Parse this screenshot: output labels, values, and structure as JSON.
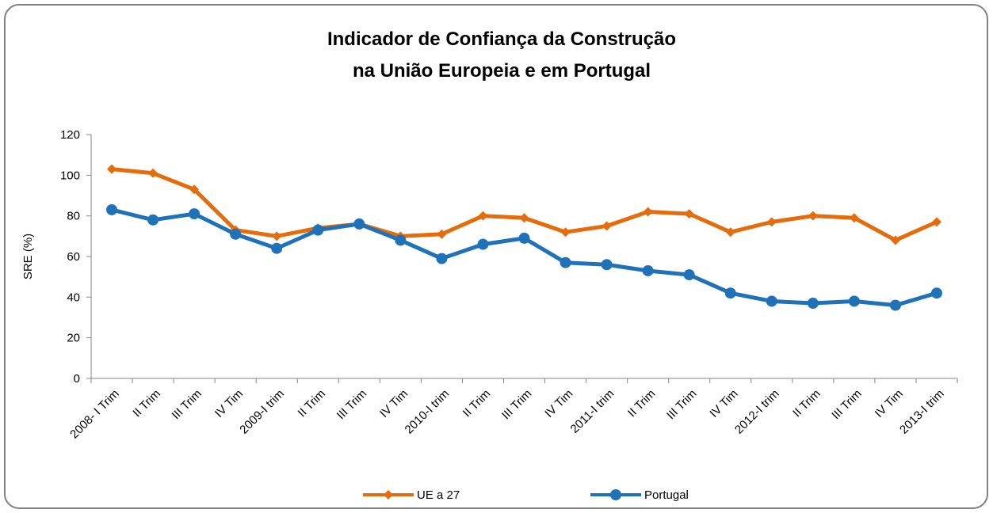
{
  "chart_data": {
    "type": "line",
    "title": [
      "Indicador de Confiança da Construção",
      "na União Europeia e em Portugal"
    ],
    "y_label": "SRE (%)",
    "categories": [
      "2008- I Trim",
      "II Trim",
      "III Trim",
      "IV Tim",
      "2009-I trim",
      "II Trim",
      "III Trim",
      "IV Tim",
      "2010-I trim",
      "II Trim",
      "III Trim",
      "IV Tim",
      "2011-I trim",
      "II Trim",
      "III Trim",
      "IV Tim",
      "2012-I trim",
      "II Trim",
      "III Trim",
      "IV Tim",
      "2013-I trim"
    ],
    "series": [
      {
        "name": "UE a 27",
        "color": "#e46c0a",
        "marker": "diamond",
        "values": [
          103,
          101,
          93,
          73,
          70,
          74,
          76,
          70,
          71,
          80,
          79,
          72,
          75,
          82,
          81,
          72,
          77,
          80,
          79,
          68,
          77
        ]
      },
      {
        "name": "Portugal",
        "color": "#1f71b8",
        "marker": "circle",
        "values": [
          83,
          78,
          81,
          71,
          64,
          73,
          76,
          68,
          59,
          66,
          69,
          57,
          56,
          53,
          51,
          42,
          38,
          37,
          38,
          36,
          42
        ]
      }
    ],
    "ylim": [
      0,
      120
    ],
    "yticks": [
      0,
      20,
      40,
      60,
      80,
      100,
      120
    ],
    "grid": false,
    "legend": "bottom"
  }
}
